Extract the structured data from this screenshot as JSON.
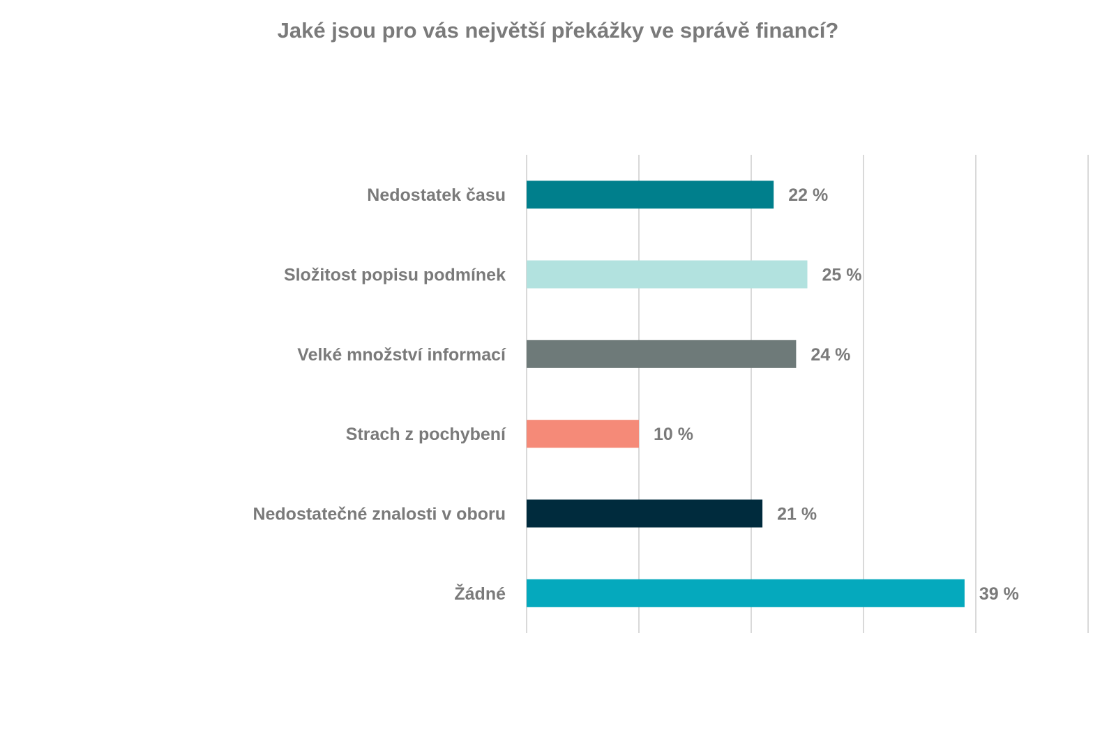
{
  "chart_data": {
    "type": "bar",
    "orientation": "horizontal",
    "title": "Jaké jsou pro vás největší překážky ve správě financí?",
    "categories": [
      "Nedostatek času",
      "Složitost popisu podmínek",
      "Velké množství informací",
      "Strach z pochybení",
      "Nedostatečné znalosti v oboru",
      "Žádné"
    ],
    "values": [
      22,
      25,
      24,
      10,
      21,
      39
    ],
    "value_labels": [
      "22 %",
      "25 %",
      "24 %",
      "10 %",
      "21 %",
      "39 %"
    ],
    "colors": [
      "#007f8c",
      "#b2e2df",
      "#6e7a79",
      "#f58a78",
      "#002b3d",
      "#05a9bd"
    ],
    "xlim": [
      0,
      50
    ],
    "grid": true,
    "legend": "none"
  }
}
